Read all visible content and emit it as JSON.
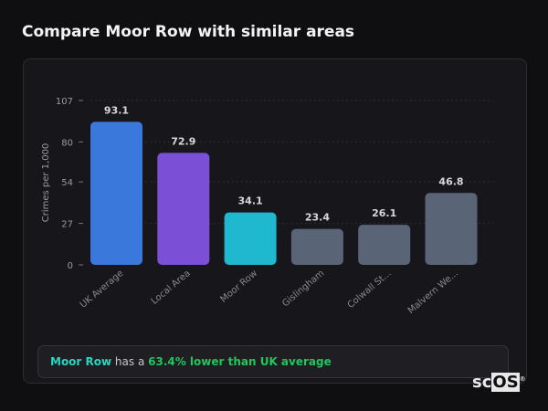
{
  "title": "Compare Moor Row with similar areas",
  "chart_data": {
    "type": "bar",
    "ylabel": "Crimes per 1,000",
    "xlabel": "",
    "ylim": [
      0,
      107
    ],
    "yticks": [
      0,
      27,
      54,
      80,
      107
    ],
    "grid": true,
    "categories": [
      "UK Average",
      "Local Area",
      "Moor Row",
      "Gislingham",
      "Colwall St...",
      "Malvern We..."
    ],
    "values": [
      93.1,
      72.9,
      34.1,
      23.4,
      26.1,
      46.8
    ],
    "data_labels": [
      "93.1",
      "72.9",
      "34.1",
      "23.4",
      "26.1",
      "46.8"
    ],
    "colors": [
      "#3a78dc",
      "#7b4fd6",
      "#1fb8cf",
      "#5a6477",
      "#5a6477",
      "#5a6477"
    ]
  },
  "footer": {
    "area": "Moor Row",
    "mid": " has a ",
    "comparison": "63.4% lower than UK average"
  },
  "logo": {
    "text": "scOS"
  }
}
